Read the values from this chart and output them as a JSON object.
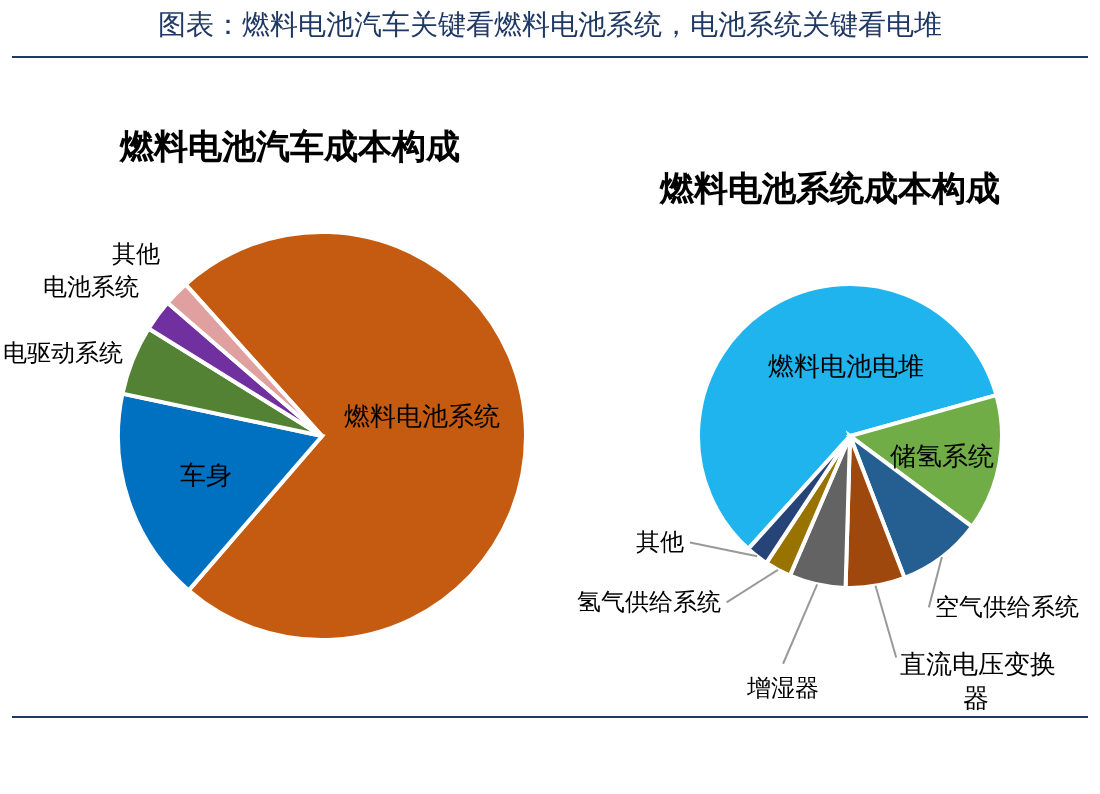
{
  "chart_data": [
    {
      "type": "pie",
      "title": "图表：燃料电池汽车关键看燃料电池系统，电池系统关键看电堆",
      "subtitle": "燃料电池汽车成本构成",
      "categories": [
        "燃料电池系统",
        "车身",
        "电驱动系统",
        "电池系统",
        "其他"
      ],
      "values": [
        73,
        17,
        5.5,
        2.5,
        2
      ],
      "colors": [
        "#c55a11",
        "#0070c0",
        "#548235",
        "#7030a0",
        "#e0a0a0"
      ]
    },
    {
      "type": "pie",
      "title": "燃料电池系统成本构成",
      "categories": [
        "燃料电池电堆",
        "储氢系统",
        "空气供给系统",
        "直流电压变换器",
        "增湿器",
        "氢气供给系统",
        "其他"
      ],
      "values": [
        59,
        14.5,
        9,
        6.3,
        6,
        2.8,
        2.4
      ],
      "colors": [
        "#1fb4ee",
        "#70ad47",
        "#255e91",
        "#9e480e",
        "#636363",
        "#997300",
        "#264478"
      ]
    }
  ]
}
